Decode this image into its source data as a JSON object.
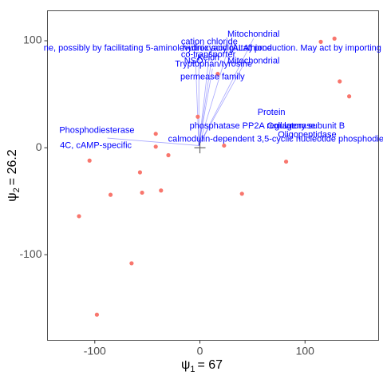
{
  "chart_data": {
    "type": "scatter",
    "title": "",
    "xlabel": {
      "symbol": "ψ",
      "sub": "1",
      "value": "= 67"
    },
    "ylabel": {
      "symbol": "ψ",
      "sub": "2",
      "value": "= 26.2"
    },
    "xlim": [
      -145,
      170
    ],
    "ylim": [
      -180,
      128
    ],
    "xticks": [
      -100,
      0,
      100
    ],
    "yticks": [
      -100,
      0,
      100
    ],
    "xtick_labels": [
      "-100",
      "0",
      "100"
    ],
    "ytick_labels": [
      "-100",
      "0",
      "100"
    ],
    "grid": false,
    "legend": "none",
    "point_color": "#f8766d",
    "annotation_color": "#0000ff",
    "points": [
      {
        "x": -115,
        "y": -64
      },
      {
        "x": -105,
        "y": -12
      },
      {
        "x": -98,
        "y": -156
      },
      {
        "x": -85,
        "y": -44
      },
      {
        "x": -65,
        "y": -108
      },
      {
        "x": -57,
        "y": -23
      },
      {
        "x": -55,
        "y": -42
      },
      {
        "x": -37,
        "y": -40
      },
      {
        "x": -30,
        "y": -7
      },
      {
        "x": -42,
        "y": 13
      },
      {
        "x": -42,
        "y": 1
      },
      {
        "x": -2,
        "y": 29
      },
      {
        "x": 17,
        "y": 69
      },
      {
        "x": 23,
        "y": 2
      },
      {
        "x": 40,
        "y": -43
      },
      {
        "x": 82,
        "y": -13
      },
      {
        "x": 115,
        "y": 99
      },
      {
        "x": 128,
        "y": 102
      },
      {
        "x": 133,
        "y": 62
      },
      {
        "x": 142,
        "y": 48
      }
    ],
    "annotations": [
      {
        "text": "Mitochondrial",
        "x": 51,
        "y": 106
      },
      {
        "text": "cation chloride",
        "x": 9,
        "y": 99
      },
      {
        "text": "ne, possibly by facilitating 5-aminolevulinic acid (ALA) production. May act by importing",
        "x": 12,
        "y": 93
      },
      {
        "text": "hydroxyacylglutathione",
        "x": 26,
        "y": 93
      },
      {
        "text": "co-transporter",
        "x": 8,
        "y": 87
      },
      {
        "text": "Kelch",
        "x": 8,
        "y": 84
      },
      {
        "text": "Mitochondrial",
        "x": 51,
        "y": 81
      },
      {
        "text": "NSO",
        "x": -6,
        "y": 81
      },
      {
        "text": "Tryptophan/tyrosine",
        "x": 13,
        "y": 78
      },
      {
        "text": "permease family",
        "x": 12,
        "y": 66
      },
      {
        "text": "Protein",
        "x": 68,
        "y": 33
      },
      {
        "text": "Phosphodiesterase",
        "x": -98,
        "y": 16
      },
      {
        "text": "phosphatase PP2A regulatory subunit B",
        "x": 64,
        "y": 20
      },
      {
        "text": "Collagenase",
        "x": 87,
        "y": 20
      },
      {
        "text": "Oligopeptidase",
        "x": 102,
        "y": 12
      },
      {
        "text": "calmodulin-dependent 3,5-cyclic nucleotide phosphodiesterase",
        "x": 86,
        "y": 8
      },
      {
        "text": "4C, cAMP-specific",
        "x": -99,
        "y": 2
      }
    ],
    "leader_lines": [
      {
        "from": [
          -1,
          2
        ],
        "to": [
          51,
          102
        ]
      },
      {
        "from": [
          -1,
          2
        ],
        "to": [
          26,
          90
        ]
      },
      {
        "from": [
          -1,
          2
        ],
        "to": [
          11,
          82
        ]
      },
      {
        "from": [
          -1,
          2
        ],
        "to": [
          44,
          82
        ]
      },
      {
        "from": [
          -1,
          2
        ],
        "to": [
          10,
          96
        ]
      },
      {
        "from": [
          -1,
          2
        ],
        "to": [
          -4,
          78
        ]
      },
      {
        "from": [
          -1,
          2
        ],
        "to": [
          12,
          74
        ]
      },
      {
        "from": [
          -1,
          2
        ],
        "to": [
          -1,
          84
        ]
      },
      {
        "from": [
          -1,
          2
        ],
        "to": [
          -88,
          9
        ]
      }
    ],
    "origin_marker": {
      "x": 0,
      "y": 0
    }
  }
}
